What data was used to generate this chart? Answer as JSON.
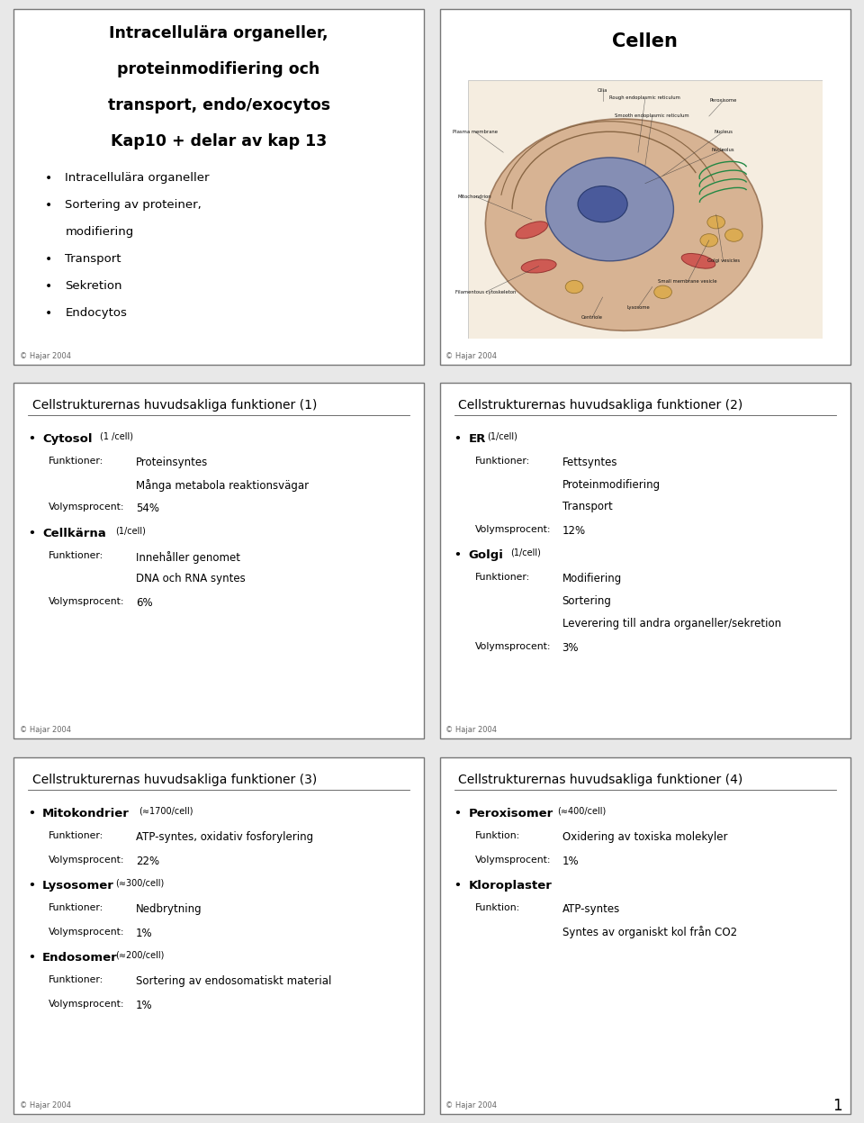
{
  "bg_color": "#e8e8e8",
  "slide_bg": "#ffffff",
  "border_color": "#888888",
  "text_color": "#000000",
  "slide1": {
    "title_lines": [
      "Intracellulära organeller,",
      "proteinmodifiering och",
      "transport, endo/exocytos",
      "Kap10 + delar av kap 13"
    ],
    "bullets": [
      "Intracellulära organeller",
      "Sortering av proteiner,\n  modifiering",
      "Transport",
      "Sekretion",
      "Endocytos"
    ],
    "footer": "© Hajar 2004"
  },
  "slide2": {
    "title": "Cellen",
    "footer": "© Hajar 2004"
  },
  "slide3": {
    "title": "Cellstrukturernas huvudsakliga funktioner (1)",
    "entries": [
      {
        "name": "Cytosol",
        "count": "(1 /cell)",
        "funktioner_label": "Funktioner:",
        "funktioner_lines": [
          "Proteinsyntes",
          "Många metabola reaktionsvägar"
        ],
        "volym_label": "Volymsprocent:",
        "volym_value": "54%"
      },
      {
        "name": "Cellkärna",
        "count": "(1/cell)",
        "funktioner_label": "Funktioner:",
        "funktioner_lines": [
          "Innehåller genomet",
          "DNA och RNA syntes"
        ],
        "volym_label": "Volymsprocent:",
        "volym_value": "6%"
      }
    ],
    "footer": "© Hajar 2004"
  },
  "slide4": {
    "title": "Cellstrukturernas huvudsakliga funktioner (2)",
    "entries": [
      {
        "name": "ER",
        "count": "(1/cell)",
        "funktioner_label": "Funktioner:",
        "funktioner_lines": [
          "Fettsyntes",
          "Proteinmodifiering",
          "Transport"
        ],
        "volym_label": "Volymsprocent:",
        "volym_value": "12%"
      },
      {
        "name": "Golgi",
        "count": "(1/cell)",
        "funktioner_label": "Funktioner:",
        "funktioner_lines": [
          "Modifiering",
          "Sortering",
          "Leverering till andra organeller/sekretion"
        ],
        "volym_label": "Volymsprocent:",
        "volym_value": "3%"
      }
    ],
    "footer": "© Hajar 2004"
  },
  "slide5": {
    "title": "Cellstrukturernas huvudsakliga funktioner (3)",
    "entries": [
      {
        "name": "Mitokondrier",
        "count": "(≈1700/cell)",
        "funktioner_label": "Funktioner:",
        "funktioner_lines": [
          "ATP-syntes, oxidativ fosforylering"
        ],
        "volym_label": "Volymsprocent:",
        "volym_value": "22%"
      },
      {
        "name": "Lysosomer",
        "count": "(≈300/cell)",
        "funktioner_label": "Funktioner:",
        "funktioner_lines": [
          "Nedbrytning"
        ],
        "volym_label": "Volymsprocent:",
        "volym_value": "1%"
      },
      {
        "name": "Endosomer",
        "count": "(≈200/cell)",
        "funktioner_label": "Funktioner:",
        "funktioner_lines": [
          "Sortering av endosomatiskt material"
        ],
        "volym_label": "Volymsprocent:",
        "volym_value": "1%"
      }
    ],
    "footer": "© Hajar 2004"
  },
  "slide6": {
    "title": "Cellstrukturernas huvudsakliga funktioner (4)",
    "entries": [
      {
        "name": "Peroxisomer",
        "count": "(≈400/cell)",
        "funktioner_label": "Funktion:",
        "funktioner_lines": [
          "Oxidering av toxiska molekyler"
        ],
        "volym_label": "Volymsprocent:",
        "volym_value": "1%"
      },
      {
        "name": "Kloroplaster",
        "count": "",
        "funktioner_label": "Funktion:",
        "funktioner_lines": [
          "ATP-syntes",
          "Syntes av organiskt kol från CO2"
        ],
        "volym_label": "",
        "volym_value": ""
      }
    ],
    "footer": "© Hajar 2004"
  },
  "page_number": "1"
}
